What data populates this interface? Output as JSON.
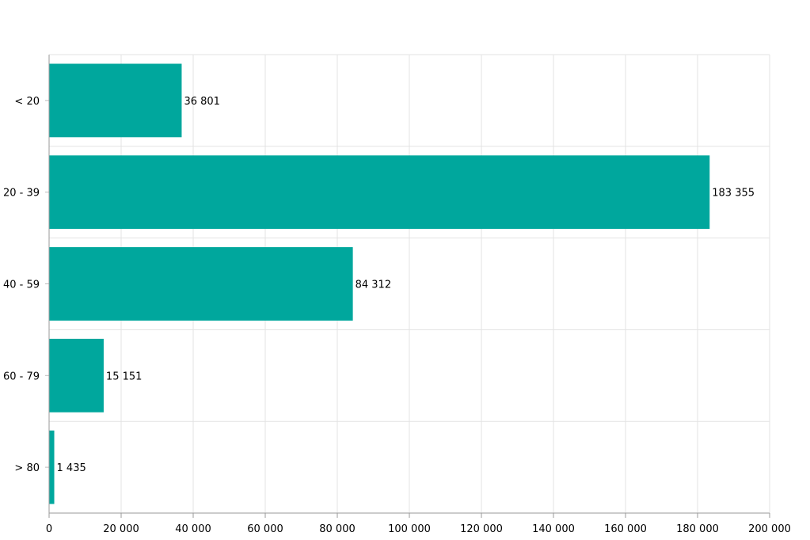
{
  "chart_data": {
    "type": "bar",
    "orientation": "horizontal",
    "categories": [
      "< 20",
      "20 - 39",
      "40 - 59",
      "60 - 79",
      "> 80"
    ],
    "values": [
      36801,
      183355,
      84312,
      15151,
      1435
    ],
    "value_labels": [
      "36 801",
      "183 355",
      "84 312",
      "15 151",
      "1 435"
    ],
    "title": "",
    "xlabel": "",
    "ylabel": "",
    "xlim": [
      0,
      200000
    ],
    "x_ticks": [
      0,
      20000,
      40000,
      60000,
      80000,
      100000,
      120000,
      140000,
      160000,
      180000,
      200000
    ],
    "x_tick_labels": [
      "0",
      "20 000",
      "40 000",
      "60 000",
      "80 000",
      "100 000",
      "120 000",
      "140 000",
      "160 000",
      "180 000",
      "200 000"
    ],
    "grid": true,
    "legend": "none",
    "bar_color": "#00a79d"
  }
}
